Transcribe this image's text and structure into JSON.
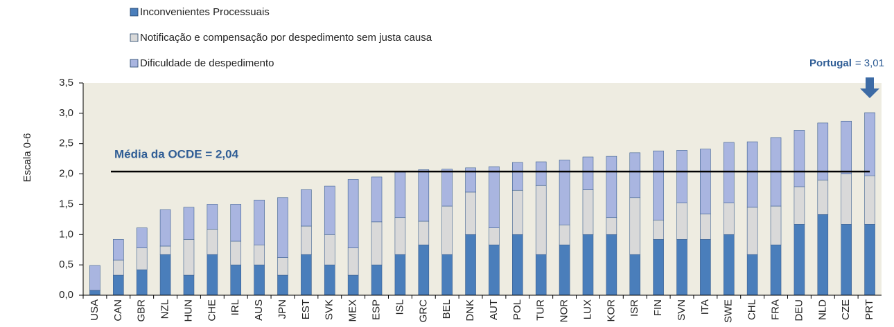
{
  "chart_data": {
    "type": "stacked_bar",
    "y_label": "Escala 0-6",
    "categories": [
      "USA",
      "CAN",
      "GBR",
      "NZL",
      "HUN",
      "CHE",
      "IRL",
      "AUS",
      "JPN",
      "EST",
      "SVK",
      "MEX",
      "ESP",
      "ISL",
      "GRC",
      "BEL",
      "DNK",
      "AUT",
      "POL",
      "TUR",
      "NOR",
      "LUX",
      "KOR",
      "ISR",
      "FIN",
      "SVN",
      "ITA",
      "SWE",
      "CHL",
      "FRA",
      "DEU",
      "NLD",
      "CZE",
      "PRT"
    ],
    "series": [
      {
        "name": "Inconvenientes Processuais",
        "color": "#4a7ebb",
        "values": [
          0.08,
          0.33,
          0.42,
          0.67,
          0.33,
          0.67,
          0.5,
          0.5,
          0.33,
          0.67,
          0.5,
          0.33,
          0.5,
          0.67,
          0.83,
          0.67,
          1.0,
          0.83,
          1.0,
          0.67,
          0.83,
          1.0,
          1.0,
          0.67,
          0.92,
          0.92,
          0.92,
          1.0,
          0.67,
          0.83,
          1.17,
          1.33,
          1.17,
          1.17
        ]
      },
      {
        "name": "Notificação e compensação por despedimento sem justa causa",
        "color": "#d9d9d9",
        "values": [
          0,
          0.25,
          0.36,
          0.14,
          0.59,
          0.42,
          0.39,
          0.33,
          0.29,
          0.47,
          0.5,
          0.45,
          0.71,
          0.61,
          0.39,
          0.8,
          0.7,
          0.28,
          0.73,
          1.14,
          0.33,
          0.74,
          0.28,
          0.94,
          0.32,
          0.6,
          0.42,
          0.52,
          0.78,
          0.64,
          0.62,
          0.57,
          0.83,
          0.8
        ]
      },
      {
        "name": "Dificuldade de despedimento",
        "color": "#a9b5e0",
        "values": [
          0.41,
          0.34,
          0.33,
          0.6,
          0.53,
          0.41,
          0.61,
          0.74,
          0.99,
          0.6,
          0.8,
          1.13,
          0.74,
          0.75,
          0.85,
          0.61,
          0.4,
          1.01,
          0.46,
          0.39,
          1.07,
          0.54,
          1.01,
          0.74,
          1.14,
          0.87,
          1.07,
          1.0,
          1.08,
          1.13,
          0.93,
          0.94,
          0.87,
          1.04
        ]
      }
    ],
    "ylim": [
      0,
      3.5
    ],
    "yticks": [
      {
        "value": 0,
        "label": "0,0"
      },
      {
        "value": 0.5,
        "label": "0,5"
      },
      {
        "value": 1,
        "label": "1,0"
      },
      {
        "value": 1.5,
        "label": "1,5"
      },
      {
        "value": 2,
        "label": "2,0"
      },
      {
        "value": 2.5,
        "label": "2,5"
      },
      {
        "value": 3,
        "label": "3,0"
      },
      {
        "value": 3.5,
        "label": "3,5"
      }
    ],
    "grid": false,
    "reference_line": {
      "value": 2.04,
      "label": "Média da OCDE = 2,04",
      "color": "#000000"
    },
    "annotation": {
      "label": "Portugal",
      "text": "= 3,01",
      "color": "#2f5d95"
    }
  }
}
